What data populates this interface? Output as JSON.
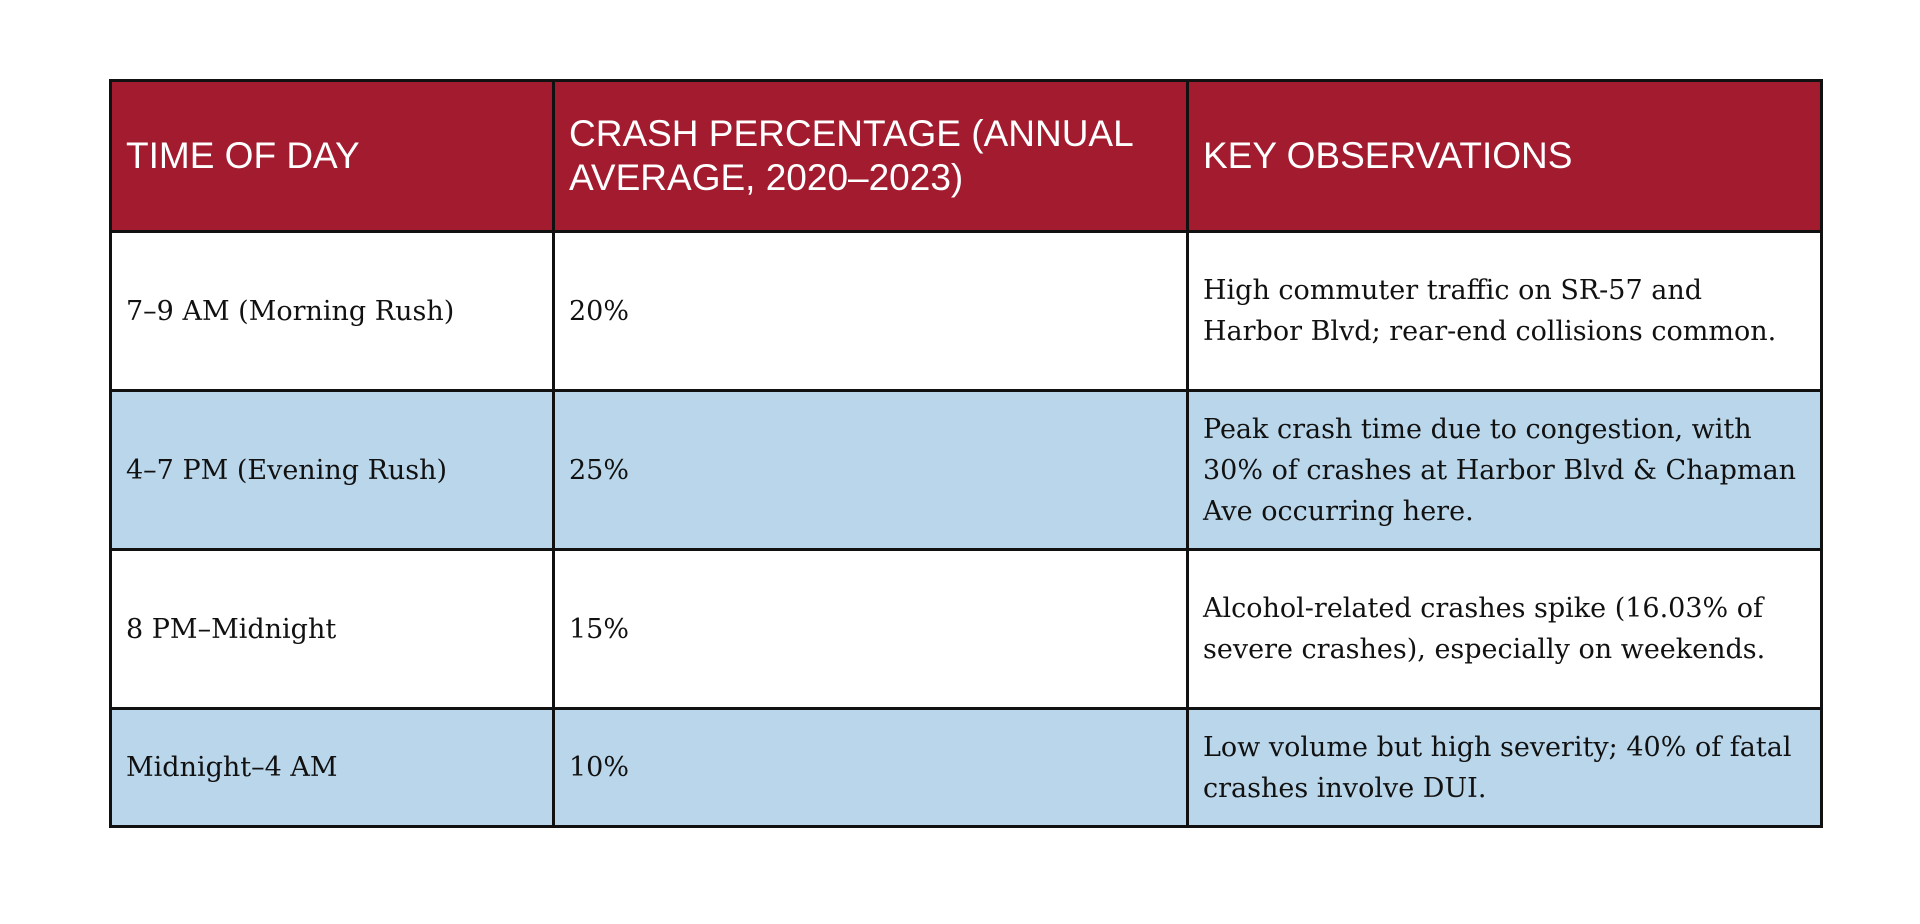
{
  "table": {
    "headers": [
      "TIME OF DAY",
      "CRASH PERCENTAGE (ANNUAL AVERAGE, 2020–2023)",
      "KEY OBSERVATIONS"
    ],
    "rows": [
      {
        "time": "7–9 AM (Morning Rush)",
        "percentage": "20%",
        "observation": "High commuter traffic on SR-57 and Harbor Blvd; rear-end collisions common."
      },
      {
        "time": "4–7 PM (Evening Rush)",
        "percentage": "25%",
        "observation": "Peak crash time due to congestion, with 30% of crashes at Harbor Blvd & Chapman Ave occurring here."
      },
      {
        "time": "8 PM–Midnight",
        "percentage": "15%",
        "observation": "Alcohol-related crashes spike (16.03% of severe crashes), especially on weekends."
      },
      {
        "time": "Midnight–4 AM",
        "percentage": "10%",
        "observation": "Low volume but high severity; 40% of fatal crashes involve DUI."
      }
    ]
  },
  "colors": {
    "header_bg": "#a31b2e",
    "header_text": "#ffffff",
    "row_alt_bg": "#bad6ea",
    "row_bg": "#ffffff",
    "border": "#111111"
  }
}
